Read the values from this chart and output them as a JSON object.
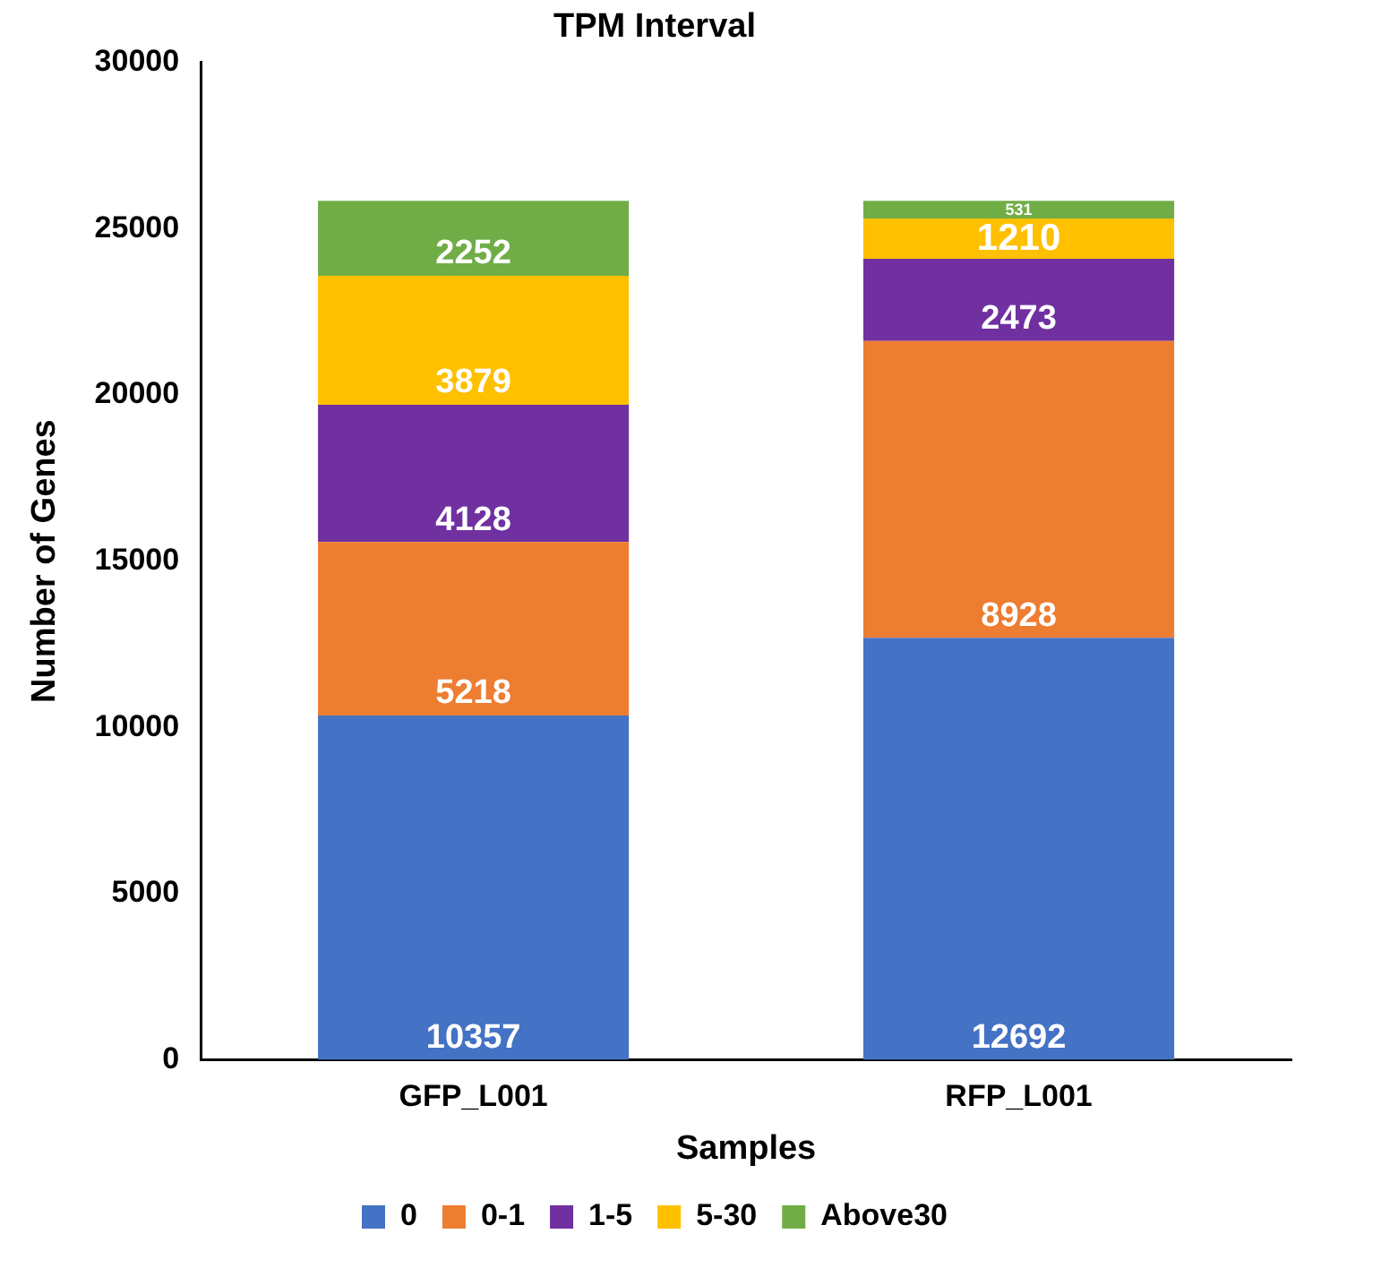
{
  "chart_data": {
    "type": "bar",
    "title": "TPM Interval",
    "xlabel": "Samples",
    "ylabel": "Number of Genes",
    "categories": [
      "GFP_L001",
      "RFP_L001"
    ],
    "stacked": true,
    "data_labels": true,
    "grid": false,
    "legend": "bottom",
    "ylim": [
      0,
      30000
    ],
    "yticks": [
      0,
      5000,
      10000,
      15000,
      20000,
      25000,
      30000
    ],
    "series": [
      {
        "name": "0",
        "color": "#4472c4",
        "values": [
          10357,
          12692
        ]
      },
      {
        "name": "0-1",
        "color": "#ed7d31",
        "values": [
          5218,
          8928
        ]
      },
      {
        "name": "1-5",
        "color": "#7030a0",
        "values": [
          4128,
          2473
        ]
      },
      {
        "name": "5-30",
        "color": "#ffc000",
        "values": [
          3879,
          1210
        ]
      },
      {
        "name": "Above30",
        "color": "#70ad47",
        "values": [
          2252,
          531
        ]
      }
    ]
  }
}
